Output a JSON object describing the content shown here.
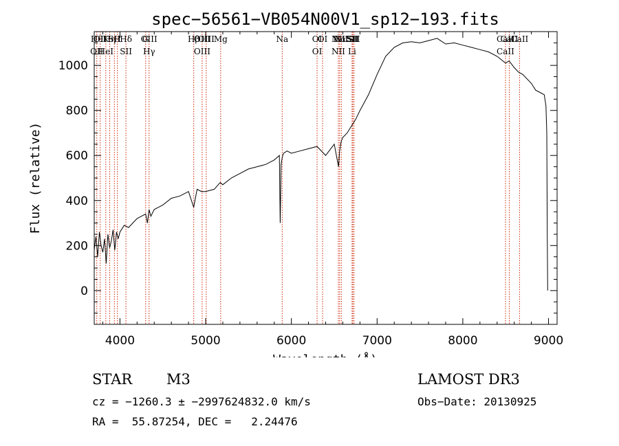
{
  "chart_data": {
    "type": "line",
    "title": "spec−56561−VB054N00V1_sp12−193.fits",
    "xlabel": "Wavelength (Å)",
    "ylabel": "Flux (relative)",
    "xlim": [
      3700,
      9100
    ],
    "ylim": [
      -150,
      1150
    ],
    "xticks": [
      4000,
      5000,
      6000,
      7000,
      8000,
      9000
    ],
    "yticks": [
      0,
      200,
      400,
      600,
      800,
      1000
    ],
    "grid": false,
    "series": [
      {
        "name": "flux",
        "x": [
          3700,
          3720,
          3740,
          3760,
          3780,
          3800,
          3820,
          3840,
          3860,
          3880,
          3900,
          3920,
          3940,
          3960,
          3980,
          4000,
          4050,
          4100,
          4150,
          4200,
          4250,
          4300,
          4320,
          4340,
          4360,
          4400,
          4450,
          4500,
          4600,
          4700,
          4800,
          4860,
          4900,
          4950,
          5000,
          5100,
          5170,
          5200,
          5300,
          5400,
          5500,
          5600,
          5700,
          5800,
          5860,
          5870,
          5880,
          5893,
          5900,
          5910,
          5950,
          6000,
          6100,
          6200,
          6300,
          6400,
          6500,
          6550,
          6563,
          6580,
          6600,
          6650,
          6700,
          6750,
          6800,
          6900,
          7000,
          7100,
          7200,
          7300,
          7400,
          7500,
          7600,
          7700,
          7800,
          7900,
          8000,
          8100,
          8200,
          8300,
          8400,
          8500,
          8540,
          8600,
          8650,
          8700,
          8800,
          8850,
          8900,
          8950,
          8970,
          8980,
          8985,
          8990
        ],
        "y": [
          180,
          240,
          150,
          260,
          200,
          170,
          230,
          120,
          250,
          190,
          220,
          270,
          180,
          260,
          230,
          260,
          290,
          280,
          300,
          320,
          330,
          340,
          300,
          360,
          330,
          360,
          370,
          380,
          410,
          420,
          440,
          370,
          450,
          440,
          440,
          450,
          480,
          470,
          500,
          520,
          540,
          550,
          560,
          580,
          600,
          300,
          560,
          590,
          600,
          610,
          620,
          610,
          620,
          630,
          640,
          600,
          650,
          550,
          620,
          660,
          680,
          700,
          730,
          760,
          800,
          870,
          960,
          1040,
          1080,
          1100,
          1105,
          1100,
          1110,
          1120,
          1095,
          1100,
          1090,
          1080,
          1070,
          1060,
          1040,
          1010,
          1020,
          990,
          970,
          960,
          920,
          890,
          880,
          870,
          820,
          700,
          250,
          0
        ]
      }
    ],
    "lines": [
      {
        "labels": [
          "Hθ",
          "OII"
        ],
        "x": 3730
      },
      {
        "labels": [
          "OII"
        ],
        "x": 3770
      },
      {
        "labels": [
          "K",
          "HeI"
        ],
        "x": 3835
      },
      {
        "labels": [
          "Hη"
        ],
        "x": 3880
      },
      {
        "labels": [
          "SII"
        ],
        "x": 3935
      },
      {
        "labels": [
          "H"
        ],
        "x": 3970
      },
      {
        "labels": [
          "Hδ",
          "SII"
        ],
        "x": 4070
      },
      {
        "labels": [
          "G"
        ],
        "x": 4300
      },
      {
        "labels": [
          "OIII",
          "Hγ"
        ],
        "x": 4340
      },
      {
        "labels": [
          "Hβ"
        ],
        "x": 4861
      },
      {
        "labels": [
          "OIII",
          "OIII"
        ],
        "x": 4959
      },
      {
        "labels": [
          "OIII"
        ],
        "x": 5007
      },
      {
        "labels": [
          "Mg"
        ],
        "x": 5175
      },
      {
        "labels": [
          "Na"
        ],
        "x": 5893
      },
      {
        "labels": [
          "OI",
          "OI"
        ],
        "x": 6300
      },
      {
        "labels": [
          "OI"
        ],
        "x": 6364
      },
      {
        "labels": [
          "NII",
          "NII"
        ],
        "x": 6548
      },
      {
        "labels": [
          "Hα"
        ],
        "x": 6563
      },
      {
        "labels": [
          "NII"
        ],
        "x": 6583
      },
      {
        "labels": [
          "SII",
          "Li"
        ],
        "x": 6708
      },
      {
        "labels": [
          "SII"
        ],
        "x": 6717
      },
      {
        "labels": [
          "SII"
        ],
        "x": 6731
      },
      {
        "labels": [
          "CaII",
          "CaII"
        ],
        "x": 8498
      },
      {
        "labels": [
          "CaII"
        ],
        "x": 8542
      },
      {
        "labels": [
          "CaII"
        ],
        "x": 8662
      }
    ],
    "colors": {
      "spectrum": "#000000",
      "line_marker": "#cc2200",
      "axes": "#000000"
    }
  },
  "info": {
    "object_class": "STAR",
    "subclass": "M3",
    "survey": "LAMOST DR3",
    "cz": "cz = −1260.3 ± −2997624832.0 km/s",
    "obs_date": "Obs−Date: 20130925",
    "coords": "RA =  55.87254, DEC =   2.24476"
  }
}
